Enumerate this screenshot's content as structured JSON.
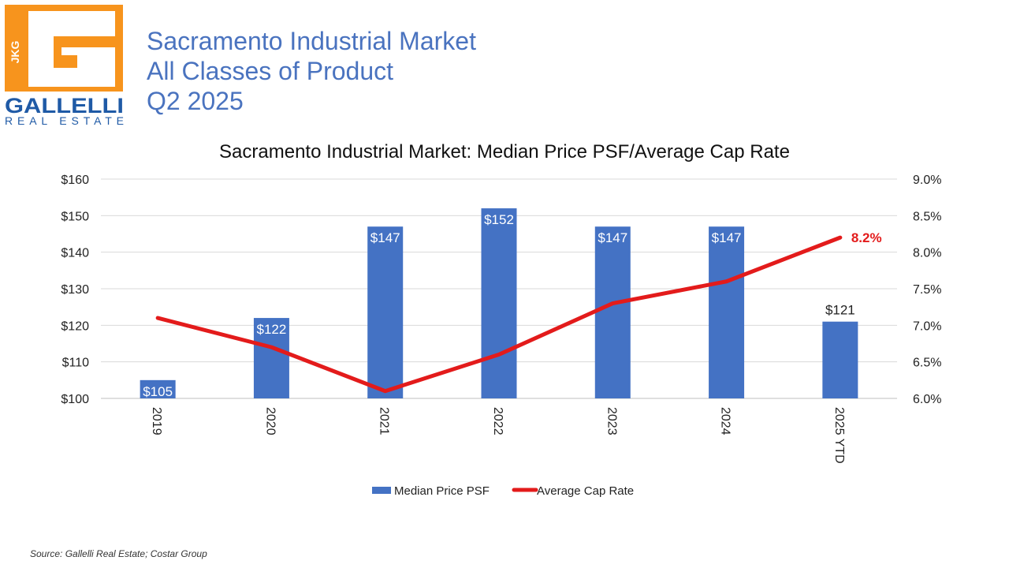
{
  "header": {
    "logo": {
      "monogram": "JKG",
      "wordmark": "GALLELLI",
      "subtext": "REAL ESTATE",
      "orange": "#f7941d",
      "blue": "#1f5aa6"
    },
    "title_lines": [
      "Sacramento Industrial Market",
      "All Classes of Product",
      "Q2 2025"
    ]
  },
  "chart_data": {
    "type": "bar",
    "title": "Sacramento Industrial Market: Median Price PSF/Average Cap Rate",
    "categories": [
      "2019",
      "2020",
      "2021",
      "2022",
      "2023",
      "2024",
      "2025 YTD"
    ],
    "series": [
      {
        "name": "Median Price PSF",
        "type": "bar",
        "axis": "left",
        "color": "#4472c4",
        "values": [
          105,
          122,
          147,
          152,
          147,
          147,
          121
        ],
        "labels": [
          "$105",
          "$122",
          "$147",
          "$152",
          "$147",
          "$147",
          "$121"
        ]
      },
      {
        "name": "Average Cap Rate",
        "type": "line",
        "axis": "right",
        "color": "#e31b1b",
        "values": [
          7.1,
          6.7,
          6.1,
          6.6,
          7.3,
          7.6,
          8.2
        ],
        "end_label": "8.2%"
      }
    ],
    "left_axis": {
      "ylim": [
        100,
        160
      ],
      "ticks": [
        "$100",
        "$110",
        "$120",
        "$130",
        "$140",
        "$150",
        "$160"
      ]
    },
    "right_axis": {
      "ylim": [
        6.0,
        9.0
      ],
      "ticks": [
        "6.0%",
        "6.5%",
        "7.0%",
        "7.5%",
        "8.0%",
        "8.5%",
        "9.0%"
      ]
    },
    "grid": true,
    "legend_position": "bottom"
  },
  "footer": {
    "source": "Source: Gallelli Real Estate; Costar Group"
  }
}
